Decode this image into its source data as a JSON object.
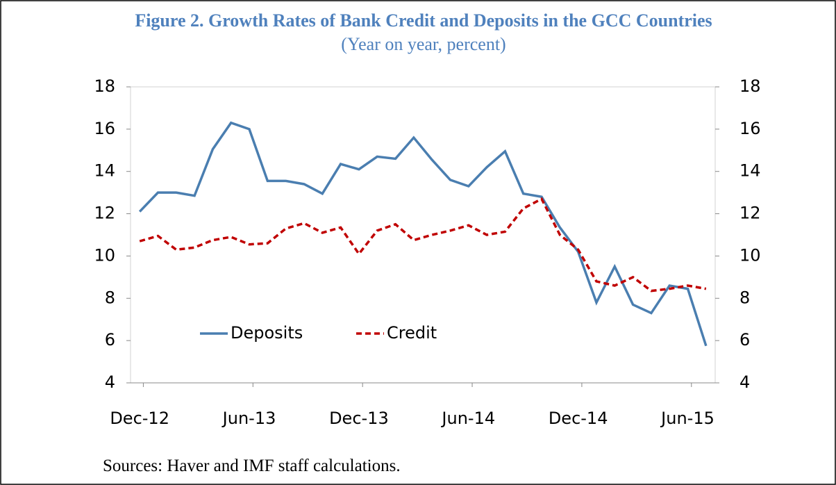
{
  "chart_data": {
    "type": "line",
    "title": "Figure 2. Growth Rates of Bank Credit and Deposits in the GCC Countries",
    "subtitle": "(Year on year, percent)",
    "source": "Sources: Haver and IMF staff calculations.",
    "categories": [
      "Dec-12",
      null,
      null,
      null,
      null,
      null,
      "Jun-13",
      null,
      null,
      null,
      null,
      null,
      "Dec-13",
      null,
      null,
      null,
      null,
      null,
      "Jun-14",
      null,
      null,
      null,
      null,
      null,
      "Dec-14",
      null,
      null,
      null,
      null,
      null,
      "Jun-15",
      null
    ],
    "series": [
      {
        "name": "Deposits",
        "color": "#4a7eb0",
        "dash": "solid",
        "values": [
          12.1,
          13.0,
          13.0,
          12.85,
          15.05,
          16.3,
          16.0,
          13.55,
          13.55,
          13.4,
          12.95,
          14.35,
          14.1,
          14.7,
          14.6,
          15.6,
          14.55,
          13.6,
          13.3,
          14.2,
          14.95,
          12.95,
          12.8,
          11.35,
          10.2,
          7.8,
          9.5,
          7.7,
          7.3,
          8.6,
          8.45,
          5.75
        ]
      },
      {
        "name": "Credit",
        "color": "#c00000",
        "dash": "dashed",
        "values": [
          10.7,
          10.95,
          10.3,
          10.4,
          10.75,
          10.9,
          10.55,
          10.6,
          11.3,
          11.55,
          11.1,
          11.35,
          10.1,
          11.2,
          11.5,
          10.75,
          11.0,
          11.2,
          11.45,
          11.0,
          11.15,
          12.25,
          12.7,
          11.0,
          10.3,
          8.8,
          8.6,
          9.0,
          8.35,
          8.45,
          8.6,
          8.45
        ]
      }
    ],
    "ylim": [
      4,
      18
    ],
    "yticks": [
      4,
      6,
      8,
      10,
      12,
      14,
      16,
      18
    ],
    "y2lim": [
      4,
      18
    ],
    "y2ticks": [
      4,
      6,
      8,
      10,
      12,
      14,
      16,
      18
    ]
  }
}
